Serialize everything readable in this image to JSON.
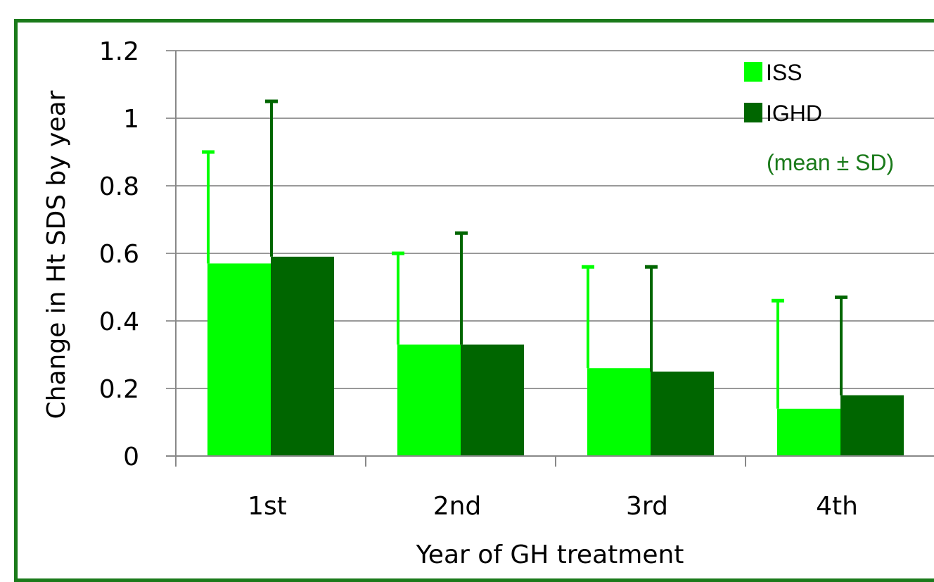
{
  "chart_data": {
    "type": "bar",
    "title": "",
    "xlabel": "Year of GH treatment",
    "ylabel": "Change in Ht SDS by year",
    "categories": [
      "1st",
      "2nd",
      "3rd",
      "4th"
    ],
    "ylim": [
      0,
      1.2
    ],
    "yticks": [
      "0",
      "0.2",
      "0.4",
      "0.6",
      "0.8",
      "1",
      "1.2"
    ],
    "grid": true,
    "legend_position": "top-right",
    "legend_note": "(mean ± SD)",
    "series": [
      {
        "name": "ISS",
        "color": "#00ff00",
        "values": [
          0.57,
          0.33,
          0.26,
          0.14
        ],
        "sd": [
          0.33,
          0.27,
          0.3,
          0.32
        ]
      },
      {
        "name": "IGHD",
        "color": "#006600",
        "values": [
          0.59,
          0.33,
          0.25,
          0.18
        ],
        "sd": [
          0.46,
          0.33,
          0.31,
          0.29
        ]
      }
    ],
    "colors": {
      "frame": "#1a7a1a",
      "grid": "#999999",
      "axis": "#888888",
      "note": "#1a7a1a"
    }
  }
}
